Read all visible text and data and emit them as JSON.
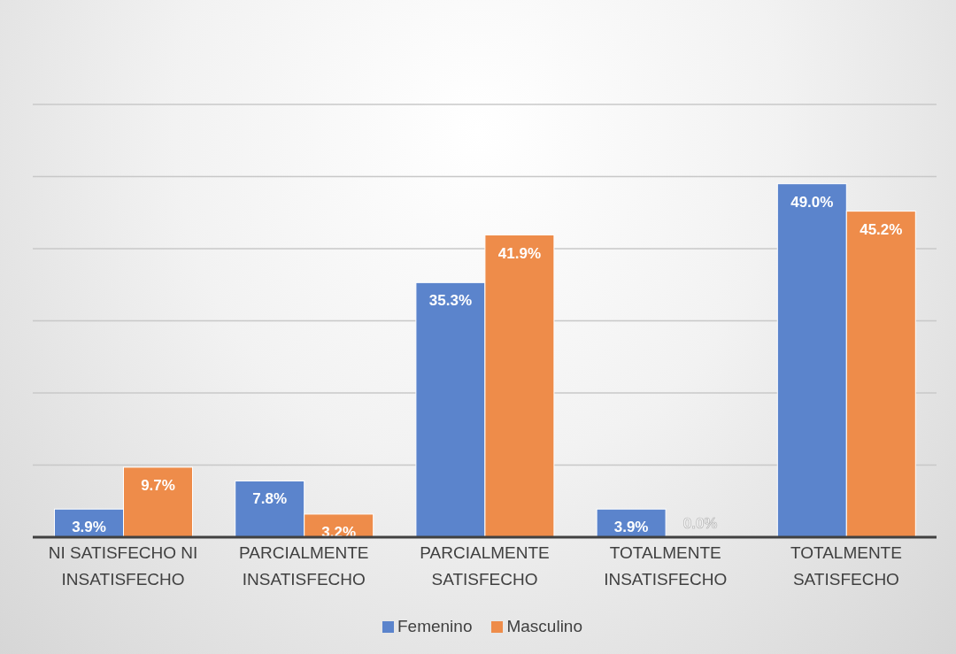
{
  "chart_data": {
    "type": "bar",
    "categories": [
      "NI SATISFECHO NI INSATISFECHO",
      "PARCIALMENTE INSATISFECHO",
      "PARCIALMENTE SATISFECHO",
      "TOTALMENTE INSATISFECHO",
      "TOTALMENTE SATISFECHO"
    ],
    "series": [
      {
        "name": "Femenino",
        "color": "#5b84cc",
        "values": [
          3.9,
          7.8,
          35.3,
          3.9,
          49.0
        ],
        "value_labels": [
          "3.9%",
          "7.8%",
          "35.3%",
          "3.9%",
          "49.0%"
        ]
      },
      {
        "name": "Masculino",
        "color": "#ee8c4a",
        "values": [
          9.7,
          3.2,
          41.9,
          0.0,
          45.2
        ],
        "value_labels": [
          "9.7%",
          "3.2%",
          "41.9%",
          "0.0%",
          "45.2%"
        ]
      }
    ],
    "ylim": [
      0,
      60
    ],
    "yticks": [
      {
        "value": 0,
        "label": null
      },
      {
        "value": 10,
        "label": null
      },
      {
        "value": 20,
        "label": null
      },
      {
        "value": 30,
        "label": null
      },
      {
        "value": 40,
        "label": null
      },
      {
        "value": 50,
        "label": null
      },
      {
        "value": 60,
        "label": null
      }
    ],
    "grid": "y",
    "legend": "bottom"
  }
}
